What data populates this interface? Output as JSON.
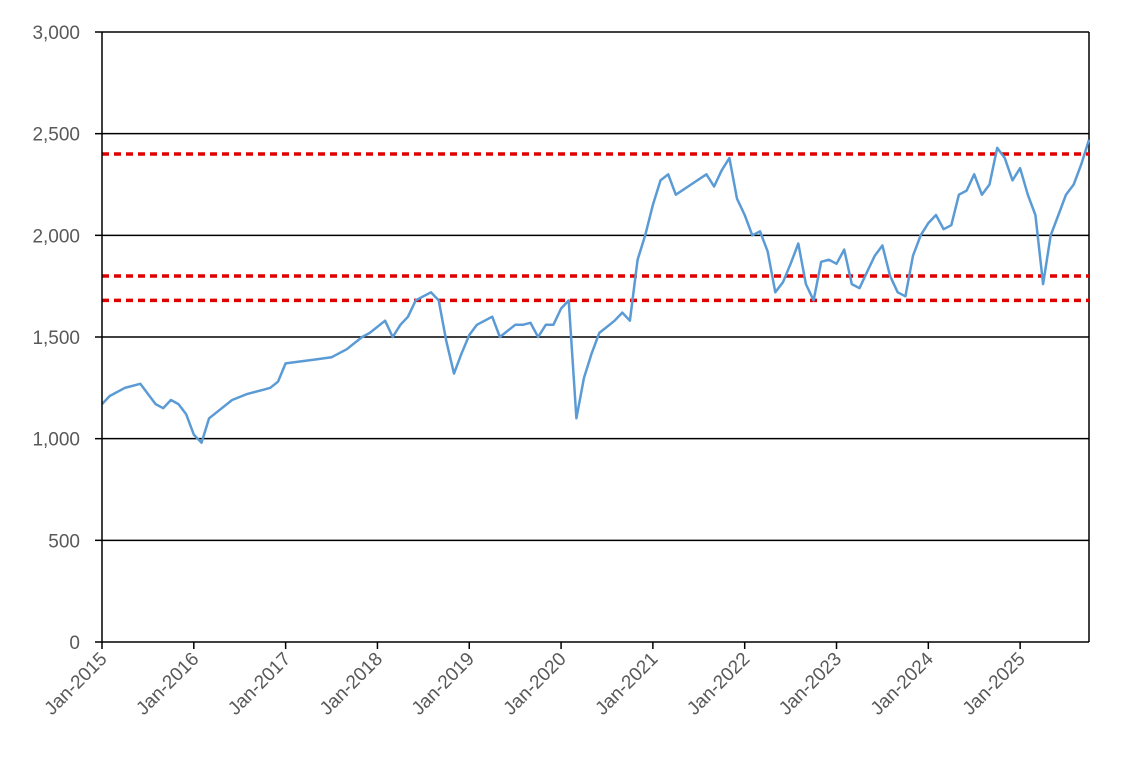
{
  "chart_data": {
    "type": "line",
    "title": "",
    "xlabel": "",
    "ylabel": "",
    "xlim": [
      "2015-01",
      "2025-10"
    ],
    "ylim": [
      0,
      3000
    ],
    "grid": "horizontal",
    "legend": "none",
    "y_ticks": [
      "0",
      "500",
      "1,000",
      "1,500",
      "2,000",
      "2,500",
      "3,000"
    ],
    "y_tick_values": [
      0,
      500,
      1000,
      1500,
      2000,
      2500,
      3000
    ],
    "x_ticks": [
      "Jan-2015",
      "Jan-2016",
      "Jan-2017",
      "Jan-2018",
      "Jan-2019",
      "Jan-2020",
      "Jan-2021",
      "Jan-2022",
      "Jan-2023",
      "Jan-2024",
      "Jan-2025"
    ],
    "x_tick_values": [
      "2015-01",
      "2016-01",
      "2017-01",
      "2018-01",
      "2019-01",
      "2020-01",
      "2021-01",
      "2022-01",
      "2023-01",
      "2024-01",
      "2025-01"
    ],
    "series": [
      {
        "color": "#5B9BD5",
        "x": [
          "2015-01",
          "2015-02",
          "2015-04",
          "2015-06",
          "2015-08",
          "2015-09",
          "2015-10",
          "2015-11",
          "2015-12",
          "2016-01",
          "2016-02",
          "2016-03",
          "2016-04",
          "2016-06",
          "2016-08",
          "2016-10",
          "2016-11",
          "2016-12",
          "2017-01",
          "2017-03",
          "2017-05",
          "2017-07",
          "2017-09",
          "2017-11",
          "2017-12",
          "2018-01",
          "2018-02",
          "2018-03",
          "2018-04",
          "2018-05",
          "2018-06",
          "2018-07",
          "2018-08",
          "2018-09",
          "2018-10",
          "2018-11",
          "2018-12",
          "2019-01",
          "2019-02",
          "2019-04",
          "2019-05",
          "2019-07",
          "2019-08",
          "2019-09",
          "2019-10",
          "2019-11",
          "2019-12",
          "2020-01",
          "2020-02",
          "2020-03",
          "2020-04",
          "2020-05",
          "2020-06",
          "2020-07",
          "2020-08",
          "2020-09",
          "2020-10",
          "2020-11",
          "2020-12",
          "2021-01",
          "2021-02",
          "2021-03",
          "2021-04",
          "2021-06",
          "2021-08",
          "2021-09",
          "2021-10",
          "2021-11",
          "2021-12",
          "2022-01",
          "2022-02",
          "2022-03",
          "2022-04",
          "2022-05",
          "2022-06",
          "2022-07",
          "2022-08",
          "2022-09",
          "2022-10",
          "2022-11",
          "2022-12",
          "2023-01",
          "2023-02",
          "2023-03",
          "2023-04",
          "2023-05",
          "2023-06",
          "2023-07",
          "2023-08",
          "2023-09",
          "2023-10",
          "2023-11",
          "2023-12",
          "2024-01",
          "2024-02",
          "2024-03",
          "2024-04",
          "2024-05",
          "2024-06",
          "2024-07",
          "2024-08",
          "2024-09",
          "2024-10",
          "2024-11",
          "2024-12",
          "2025-01",
          "2025-02",
          "2025-03",
          "2025-04",
          "2025-05",
          "2025-06",
          "2025-07",
          "2025-08",
          "2025-09",
          "2025-10"
        ],
        "y": [
          1170,
          1210,
          1250,
          1270,
          1170,
          1150,
          1190,
          1170,
          1120,
          1020,
          980,
          1100,
          1130,
          1190,
          1220,
          1240,
          1250,
          1280,
          1370,
          1380,
          1390,
          1400,
          1440,
          1500,
          1520,
          1550,
          1580,
          1500,
          1560,
          1600,
          1680,
          1700,
          1720,
          1680,
          1480,
          1320,
          1420,
          1510,
          1560,
          1600,
          1500,
          1560,
          1560,
          1570,
          1500,
          1560,
          1560,
          1640,
          1680,
          1100,
          1300,
          1420,
          1520,
          1550,
          1580,
          1620,
          1580,
          1880,
          2000,
          2150,
          2270,
          2300,
          2200,
          2250,
          2300,
          2240,
          2320,
          2380,
          2180,
          2100,
          2000,
          2020,
          1920,
          1720,
          1770,
          1860,
          1960,
          1760,
          1680,
          1870,
          1880,
          1860,
          1930,
          1760,
          1740,
          1820,
          1900,
          1950,
          1800,
          1720,
          1700,
          1900,
          2000,
          2060,
          2100,
          2030,
          2050,
          2200,
          2220,
          2300,
          2200,
          2250,
          2430,
          2380,
          2270,
          2330,
          2200,
          2100,
          1760,
          2000,
          2100,
          2200,
          2250,
          2350,
          2470
        ]
      }
    ],
    "reference_lines": [
      2400,
      1800,
      1680
    ],
    "reference_line_color": "#E00000"
  }
}
